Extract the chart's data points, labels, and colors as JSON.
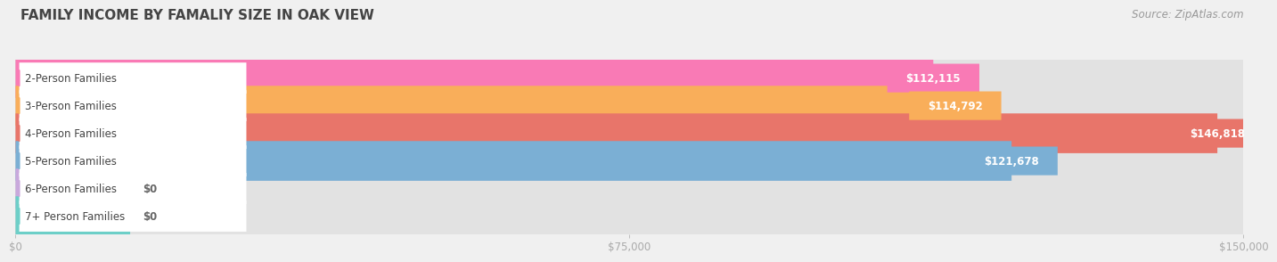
{
  "title": "Family Income by Famaliy Size in Oak View",
  "title_upper": "FAMILY INCOME BY FAMALIY SIZE IN OAK VIEW",
  "source": "Source: ZipAtlas.com",
  "categories": [
    "2-Person Families",
    "3-Person Families",
    "4-Person Families",
    "5-Person Families",
    "6-Person Families",
    "7+ Person Families"
  ],
  "values": [
    112115,
    114792,
    146818,
    121678,
    0,
    0
  ],
  "bar_colors": [
    "#F97AB5",
    "#F9AE5A",
    "#E8756A",
    "#7BAFD4",
    "#C9A8DC",
    "#6DCFC8"
  ],
  "value_labels": [
    "$112,115",
    "$114,792",
    "$146,818",
    "$121,678",
    "$0",
    "$0"
  ],
  "xlim_max": 150000,
  "xticks": [
    0,
    75000,
    150000
  ],
  "xticklabels": [
    "$0",
    "$75,000",
    "$150,000"
  ],
  "background_color": "#f0f0f0",
  "bar_bg_color": "#e2e2e2",
  "title_fontsize": 11,
  "source_fontsize": 8.5,
  "label_fontsize": 8.5,
  "value_fontsize": 8.5,
  "bar_height": 0.72,
  "zero_bar_value": 14000
}
